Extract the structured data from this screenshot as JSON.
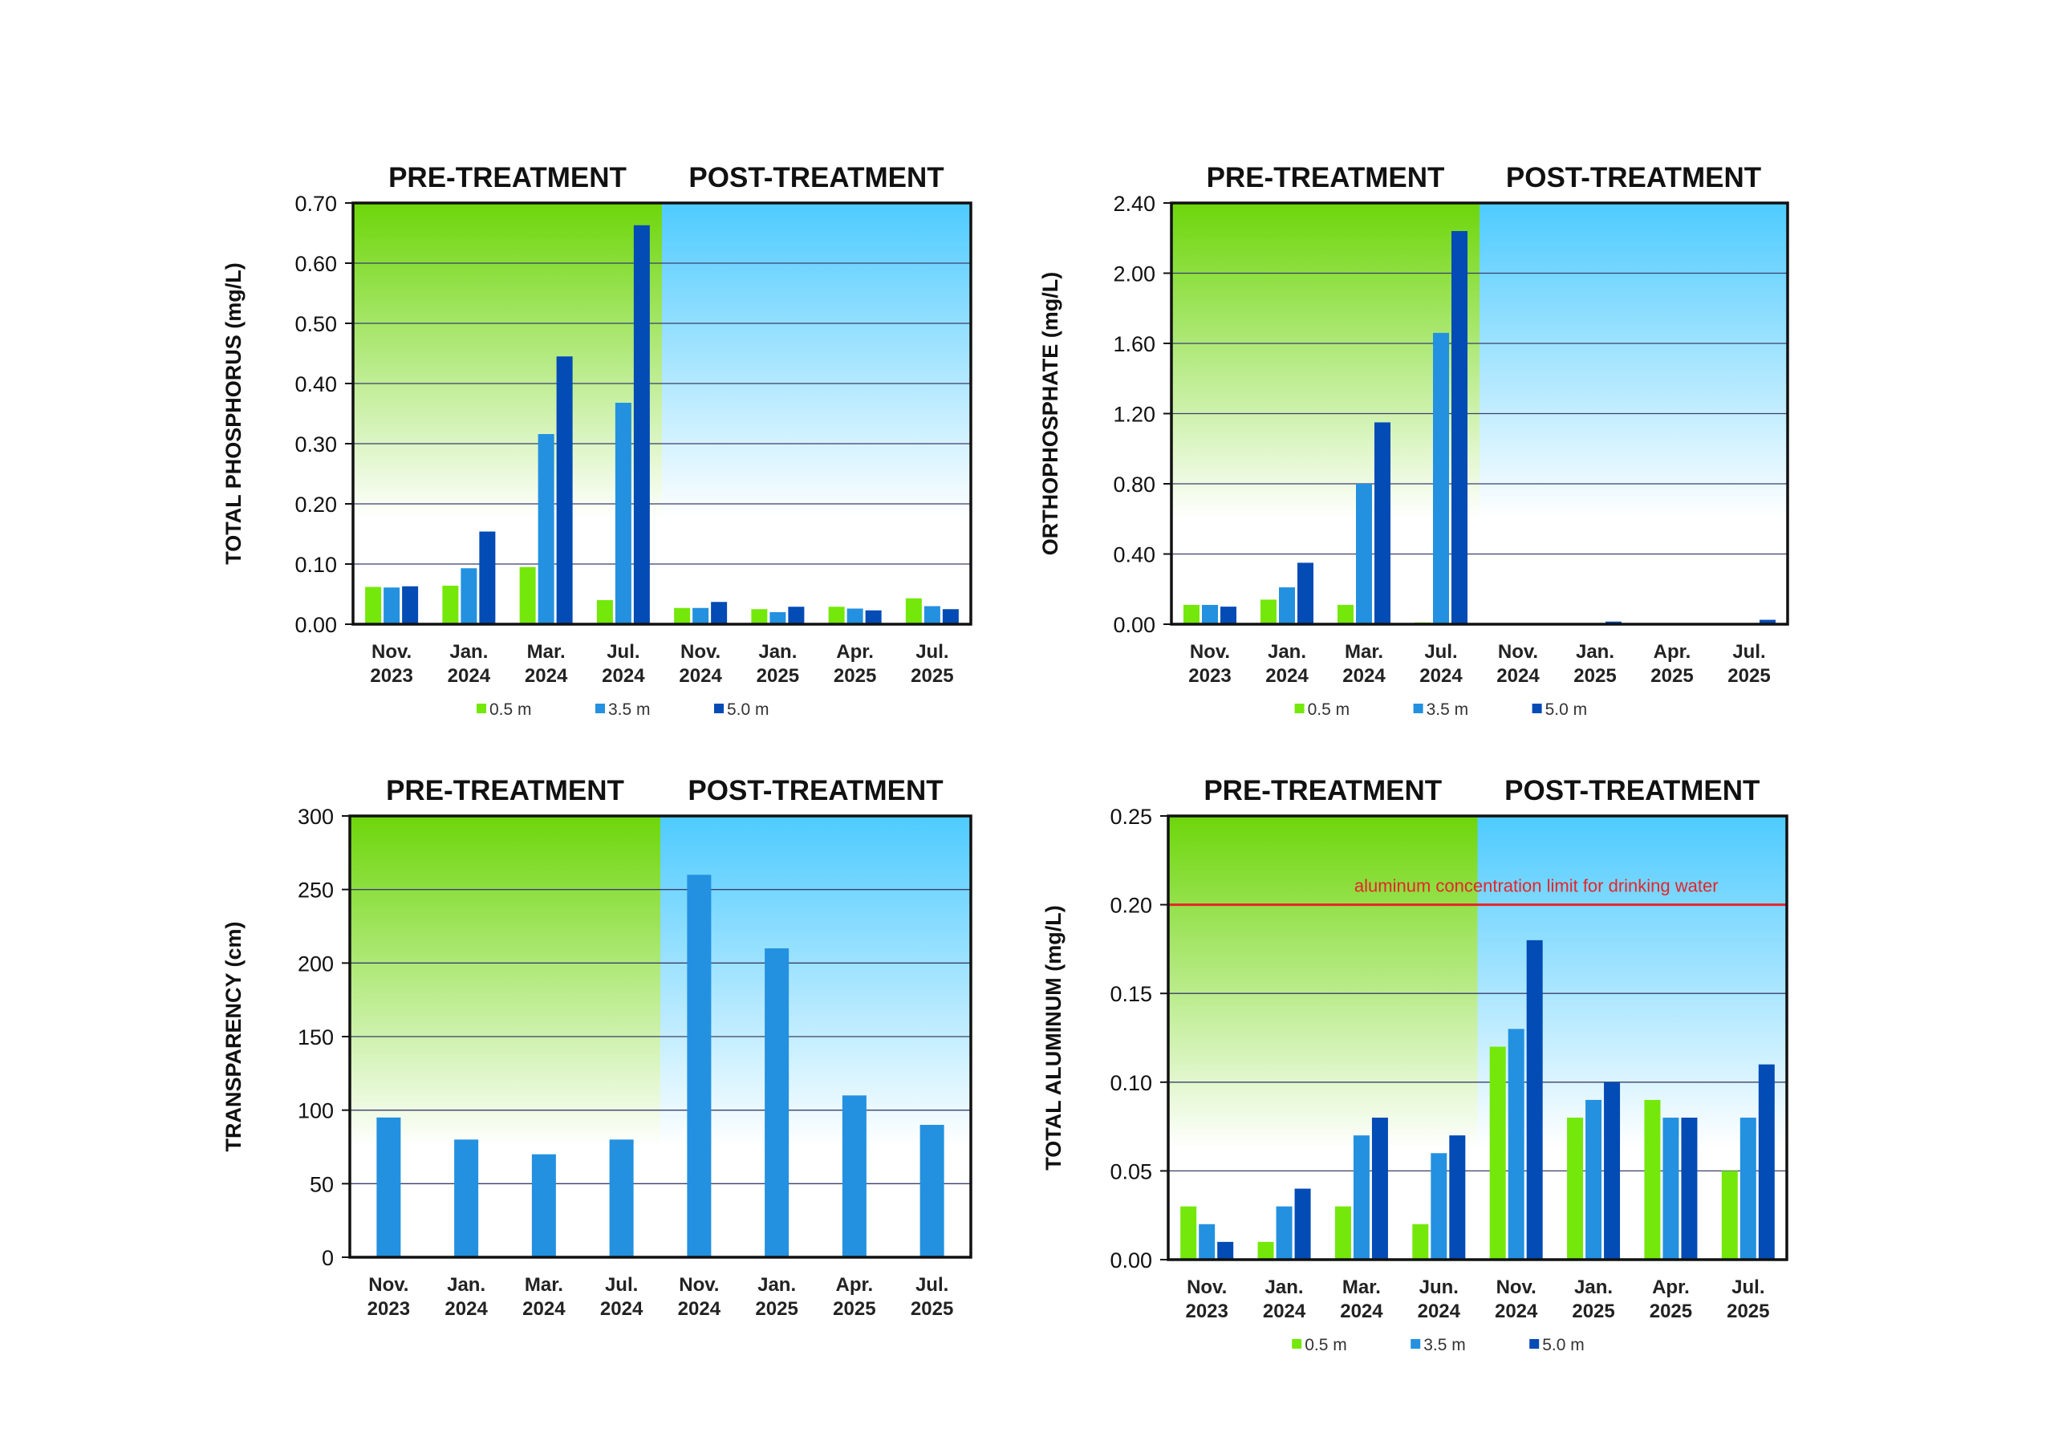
{
  "colors": {
    "s05": "#74e80a",
    "s35": "#2391e0",
    "s50": "#034bb5",
    "pre": "#6dd60a",
    "post": "#4ecbff",
    "limit": "#e8232a"
  },
  "chart_data": [
    {
      "type": "bar",
      "pre_label": "PRE-TREATMENT",
      "post_label": "POST-TREATMENT",
      "ylabel": "TOTAL PHOSPHORUS  (mg/L)",
      "ylim": [
        0,
        0.7
      ],
      "yticks": [
        "0.00",
        "0.10",
        "0.20",
        "0.30",
        "0.40",
        "0.50",
        "0.60",
        "0.70"
      ],
      "categories": [
        [
          "Nov.",
          "2023"
        ],
        [
          "Jan.",
          "2024"
        ],
        [
          "Mar.",
          "2024"
        ],
        [
          "Jul.",
          "2024"
        ],
        [
          "Nov.",
          "2024"
        ],
        [
          "Jan.",
          "2025"
        ],
        [
          "Apr.",
          "2025"
        ],
        [
          "Jul.",
          "2025"
        ]
      ],
      "series": [
        {
          "name": "0.5 m",
          "color_key": "s05",
          "values": [
            0.062,
            0.064,
            0.095,
            0.04,
            0.027,
            0.025,
            0.029,
            0.043
          ]
        },
        {
          "name": "3.5 m",
          "color_key": "s35",
          "values": [
            0.061,
            0.093,
            0.316,
            0.368,
            0.027,
            0.02,
            0.026,
            0.03
          ]
        },
        {
          "name": "5.0 m",
          "color_key": "s50",
          "values": [
            0.063,
            0.154,
            0.445,
            0.663,
            0.037,
            0.029,
            0.023,
            0.025
          ]
        }
      ],
      "legend": [
        "0.5 m",
        "3.5 m",
        "5.0 m"
      ]
    },
    {
      "type": "bar",
      "pre_label": "PRE-TREATMENT",
      "post_label": "POST-TREATMENT",
      "ylabel": "ORTHOPHOSPHATE (mg/L)",
      "ylim": [
        0,
        2.4
      ],
      "yticks": [
        "0.00",
        "0.40",
        "0.80",
        "1.20",
        "1.60",
        "2.00",
        "2.40"
      ],
      "categories": [
        [
          "Nov.",
          "2023"
        ],
        [
          "Jan.",
          "2024"
        ],
        [
          "Mar.",
          "2024"
        ],
        [
          "Jul.",
          "2024"
        ],
        [
          "Nov.",
          "2024"
        ],
        [
          "Jan.",
          "2025"
        ],
        [
          "Apr.",
          "2025"
        ],
        [
          "Jul.",
          "2025"
        ]
      ],
      "series": [
        {
          "name": "0.5 m",
          "color_key": "s05",
          "values": [
            0.11,
            0.14,
            0.11,
            0.01,
            0.005,
            0.005,
            0,
            0
          ]
        },
        {
          "name": "3.5 m",
          "color_key": "s35",
          "values": [
            0.11,
            0.21,
            0.8,
            1.66,
            0,
            0.005,
            0.005,
            0
          ]
        },
        {
          "name": "5.0 m",
          "color_key": "s50",
          "values": [
            0.1,
            0.35,
            1.15,
            2.24,
            0,
            0.015,
            0.005,
            0.025
          ]
        }
      ],
      "legend": [
        "0.5 m",
        "3.5 m",
        "5.0 m"
      ]
    },
    {
      "type": "bar",
      "pre_label": "PRE-TREATMENT",
      "post_label": "POST-TREATMENT",
      "ylabel": "TRANSPARENCY (cm)",
      "ylim": [
        0,
        300
      ],
      "yticks": [
        "0",
        "50",
        "100",
        "150",
        "200",
        "250",
        "300"
      ],
      "categories": [
        [
          "Nov.",
          "2023"
        ],
        [
          "Jan.",
          "2024"
        ],
        [
          "Mar.",
          "2024"
        ],
        [
          "Jul.",
          "2024"
        ],
        [
          "Nov.",
          "2024"
        ],
        [
          "Jan.",
          "2025"
        ],
        [
          "Apr.",
          "2025"
        ],
        [
          "Jul.",
          "2025"
        ]
      ],
      "series": [
        {
          "name": "Transparency",
          "color_key": "s35",
          "values": [
            95,
            80,
            70,
            80,
            260,
            210,
            110,
            90
          ]
        }
      ],
      "legend": []
    },
    {
      "type": "bar",
      "pre_label": "PRE-TREATMENT",
      "post_label": "POST-TREATMENT",
      "ylabel": "TOTAL ALUMINUM (mg/L)",
      "ylim": [
        0,
        0.25
      ],
      "yticks": [
        "0.00",
        "0.05",
        "0.10",
        "0.15",
        "0.20",
        "0.25"
      ],
      "categories": [
        [
          "Nov.",
          "2023"
        ],
        [
          "Jan.",
          "2024"
        ],
        [
          "Mar.",
          "2024"
        ],
        [
          "Jun.",
          "2024"
        ],
        [
          "Nov.",
          "2024"
        ],
        [
          "Jan.",
          "2025"
        ],
        [
          "Apr.",
          "2025"
        ],
        [
          "Jul.",
          "2025"
        ]
      ],
      "series": [
        {
          "name": "0.5 m",
          "color_key": "s05",
          "values": [
            0.03,
            0.01,
            0.03,
            0.02,
            0.12,
            0.08,
            0.09,
            0.05
          ]
        },
        {
          "name": "3.5 m",
          "color_key": "s35",
          "values": [
            0.02,
            0.03,
            0.07,
            0.06,
            0.13,
            0.09,
            0.08,
            0.08
          ]
        },
        {
          "name": "5.0 m",
          "color_key": "s50",
          "values": [
            0.01,
            0.04,
            0.08,
            0.07,
            0.18,
            0.1,
            0.08,
            0.11
          ]
        }
      ],
      "legend": [
        "0.5 m",
        "3.5 m",
        "5.0 m"
      ],
      "reference_line": {
        "value": 0.2,
        "label": "aluminum concentration limit for drinking water"
      }
    }
  ]
}
